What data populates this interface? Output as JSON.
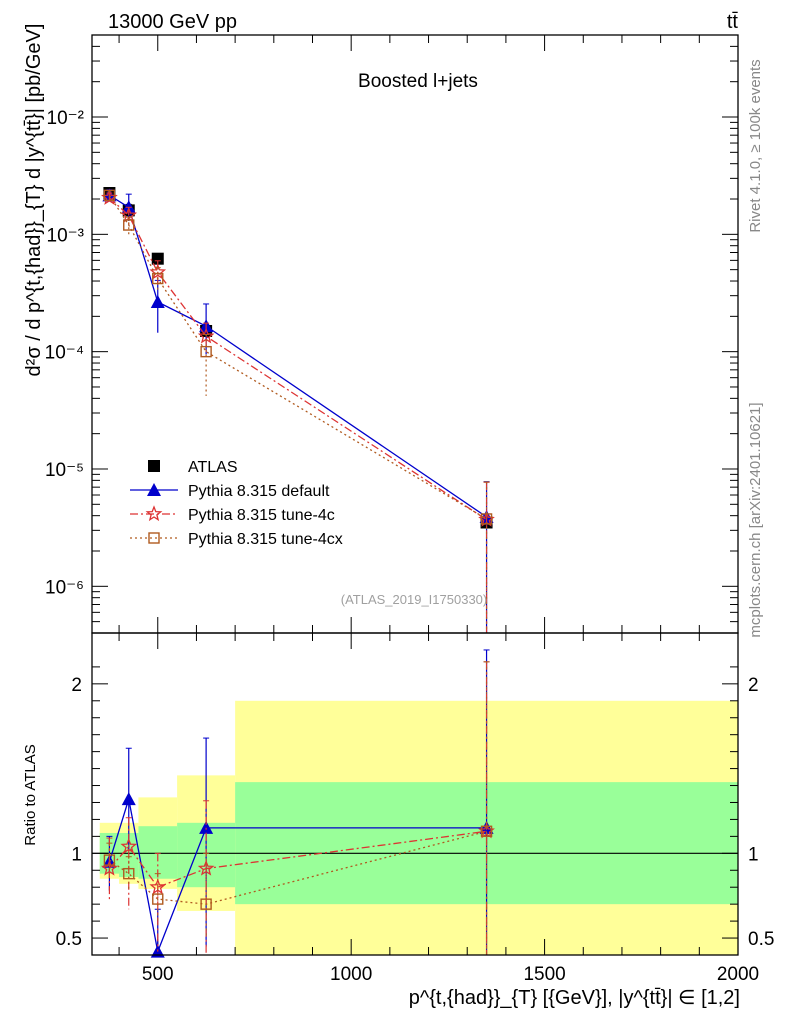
{
  "header": {
    "left_label": "13000 GeV pp",
    "right_label": "tt̄"
  },
  "side_labels": {
    "rivet": "Rivet 4.1.0, ≥ 100k events",
    "mcplots": "mcplots.cern.ch [arXiv:2401.10621]"
  },
  "chart_data": [
    {
      "type": "scatter",
      "panel": "main",
      "title": "Boosted l+jets",
      "watermark": "(ATLAS_2019_I1750330)",
      "ylabel": "d²σ / d p^{t,{had}}_{T} d |y^{tt̄}| [pb/GeV]",
      "yscale": "log",
      "xlim": [
        330,
        2000
      ],
      "ylim": [
        4e-07,
        0.05
      ],
      "yticks": [
        {
          "value": 1e-06,
          "label": "10⁻⁶"
        },
        {
          "value": 1e-05,
          "label": "10⁻⁵"
        },
        {
          "value": 0.0001,
          "label": "10⁻⁴"
        },
        {
          "value": 0.001,
          "label": "10⁻³"
        },
        {
          "value": 0.01,
          "label": "10⁻²"
        }
      ],
      "legend": {
        "position": "bottom-left"
      },
      "series": [
        {
          "name": "ATLAS",
          "style": "data",
          "color": "#000000",
          "x": [
            375,
            425,
            500,
            625,
            1350
          ],
          "y": [
            0.00225,
            0.0016,
            0.00062,
            0.00015,
            3.5e-06
          ],
          "err": [
            0.00025,
            0.0002,
            5e-05,
            2e-05,
            3e-07
          ]
        },
        {
          "name": "Pythia 8.315 default",
          "style": "line",
          "color": "#0000cc",
          "x": [
            375,
            425,
            500,
            625,
            1350
          ],
          "y": [
            0.00215,
            0.0017,
            0.000265,
            0.000165,
            3.9e-06
          ],
          "err_up": [
            0.00025,
            0.0005,
            0.00014,
            9e-05,
            3.9e-06
          ],
          "err_dn": [
            0.00025,
            0.0004,
            0.00012,
            7e-05,
            3.85e-06
          ]
        },
        {
          "name": "Pythia 8.315 tune-4c",
          "style": "dashdot",
          "color": "#dd3333",
          "x": [
            375,
            425,
            500,
            625,
            1350
          ],
          "y": [
            0.00205,
            0.00145,
            0.000475,
            0.000135,
            3.7e-06
          ],
          "err_up": [
            0.0002,
            0.00025,
            0.00012,
            4e-05,
            4e-06
          ],
          "err_dn": [
            0.0002,
            0.00025,
            0.00012,
            4e-05,
            3.65e-06
          ]
        },
        {
          "name": "Pythia 8.315 tune-4cx",
          "style": "dotted",
          "color": "#b05a1f",
          "x": [
            375,
            425,
            500,
            625,
            1350
          ],
          "y": [
            0.00215,
            0.0012,
            0.00042,
            0.0001,
            3.75e-06
          ],
          "err_up": [
            0.0002,
            0.0002,
            0.0001,
            4e-05,
            4e-06
          ],
          "err_dn": [
            0.0002,
            0.0002,
            0.0001,
            5.8e-05,
            3.7e-06
          ]
        }
      ]
    },
    {
      "type": "line",
      "panel": "ratio",
      "ylabel": "Ratio to ATLAS",
      "xlabel": "p^{t,{had}}_{T} [{GeV}], |y^{tt̄}| ∈ [1,2]",
      "xlim": [
        330,
        2000
      ],
      "ylim": [
        0.4,
        2.3
      ],
      "xticks": [
        500,
        1000,
        1500,
        2000
      ],
      "yticks": [
        0.5,
        1,
        2
      ],
      "reference": 1,
      "bands": [
        {
          "x0": 350,
          "x1": 400,
          "inner": [
            0.88,
            1.12
          ],
          "outer": [
            0.85,
            1.18
          ]
        },
        {
          "x0": 400,
          "x1": 450,
          "inner": [
            0.86,
            1.12
          ],
          "outer": [
            0.82,
            1.18
          ]
        },
        {
          "x0": 450,
          "x1": 550,
          "inner": [
            0.85,
            1.16
          ],
          "outer": [
            0.79,
            1.33
          ]
        },
        {
          "x0": 550,
          "x1": 700,
          "inner": [
            0.8,
            1.18
          ],
          "outer": [
            0.66,
            1.46
          ]
        },
        {
          "x0": 700,
          "x1": 2000,
          "inner": [
            0.7,
            1.42
          ],
          "outer": [
            0.4,
            1.9
          ]
        }
      ],
      "band_colors": {
        "inner": "#99ff99",
        "outer": "#ffff99"
      },
      "series": [
        {
          "name": "Pythia 8.315 default",
          "color": "#0000cc",
          "x": [
            375,
            425,
            500,
            625,
            1350
          ],
          "y": [
            0.95,
            1.32,
            0.42,
            1.15,
            1.15
          ],
          "err_up": [
            0.15,
            0.3,
            0.25,
            0.53,
            1.05
          ],
          "err_dn": [
            0.17,
            0.3,
            0.05,
            0.7,
            0.8
          ]
        },
        {
          "name": "Pythia 8.315 tune-4c",
          "color": "#dd3333",
          "x": [
            375,
            425,
            500,
            625,
            1350
          ],
          "y": [
            0.91,
            1.04,
            0.8,
            0.91,
            1.13
          ],
          "err_up": [
            0.18,
            0.17,
            0.2,
            0.4,
            1.0
          ],
          "err_dn": [
            0.18,
            0.37,
            0.38,
            0.5,
            0.78
          ]
        },
        {
          "name": "Pythia 8.315 tune-4cx",
          "color": "#b05a1f",
          "x": [
            375,
            425,
            500,
            625,
            1350
          ],
          "y": [
            0.96,
            0.88,
            0.73,
            0.7,
            1.13
          ],
          "err_up": [
            0.1,
            0.1,
            0.15,
            0.3,
            1.0
          ],
          "err_dn": [
            0.1,
            0.1,
            0.15,
            0.2,
            0.78
          ]
        }
      ]
    }
  ]
}
